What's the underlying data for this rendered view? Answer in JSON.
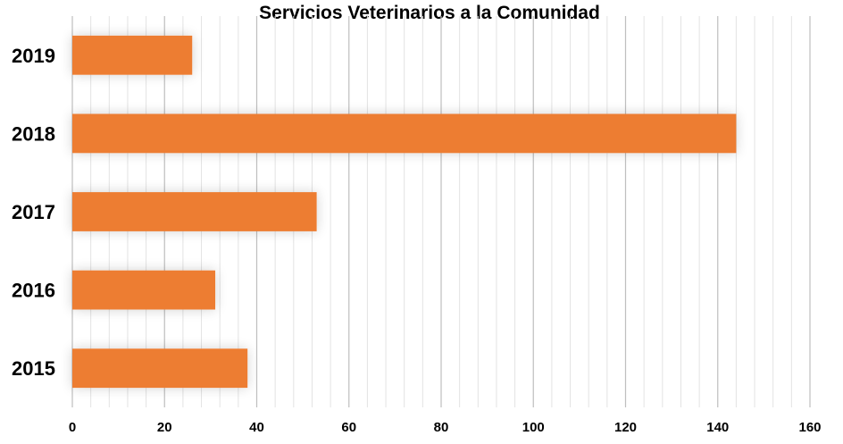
{
  "chart_data": {
    "type": "bar",
    "orientation": "horizontal",
    "title": "Servicios Veterinarios a la Comunidad",
    "categories": [
      "2019",
      "2018",
      "2017",
      "2016",
      "2015"
    ],
    "values": [
      26,
      144,
      53,
      31,
      38
    ],
    "xlim": [
      0,
      160
    ],
    "xticks": [
      "0",
      "20",
      "40",
      "60",
      "80",
      "100",
      "120",
      "140",
      "160"
    ],
    "grid": true,
    "legend": "none",
    "colors": {
      "bar": "#ED7D31",
      "grid_major": "#BFBFBF",
      "grid_minor": "#E3E3E3"
    }
  }
}
